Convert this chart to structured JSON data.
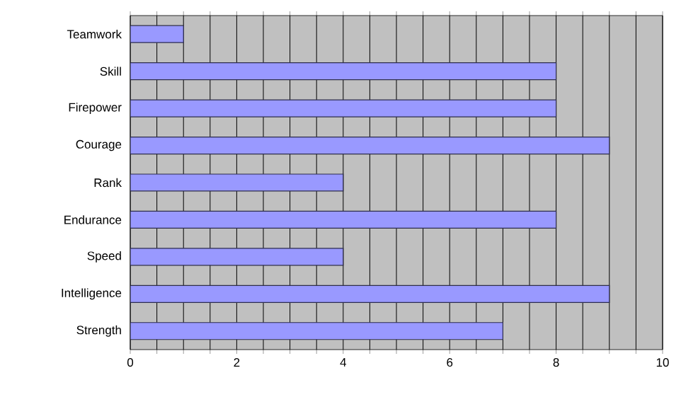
{
  "chart_data": {
    "type": "bar",
    "orientation": "horizontal",
    "categories": [
      "Teamwork",
      "Skill",
      "Firepower",
      "Courage",
      "Rank",
      "Endurance",
      "Speed",
      "Intelligence",
      "Strength"
    ],
    "values": [
      1,
      8,
      8,
      9,
      4,
      8,
      4,
      9,
      7
    ],
    "color": "#9999ff",
    "xlim": [
      0,
      10
    ],
    "xticks": [
      0,
      {
        "value": 0.5,
        "label": null
      },
      {
        "value": 1,
        "label": null
      },
      {
        "value": 1.5,
        "label": null
      },
      2,
      {
        "value": 2.5,
        "label": null
      },
      {
        "value": 3,
        "label": null
      },
      {
        "value": 3.5,
        "label": null
      },
      4,
      {
        "value": 4.5,
        "label": null
      },
      {
        "value": 5,
        "label": null
      },
      {
        "value": 5.5,
        "label": null
      },
      6,
      {
        "value": 6.5,
        "label": null
      },
      {
        "value": 7,
        "label": null
      },
      {
        "value": 7.5,
        "label": null
      },
      8,
      {
        "value": 8.5,
        "label": null
      },
      {
        "value": 9,
        "label": null
      },
      {
        "value": 9.5,
        "label": null
      },
      10
    ],
    "grid": "x"
  }
}
